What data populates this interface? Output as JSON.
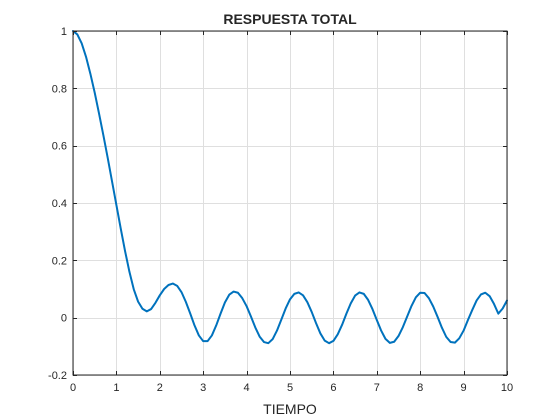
{
  "chart_data": {
    "type": "line",
    "title": "RESPUESTA TOTAL",
    "xlabel": "TIEMPO",
    "ylabel": "",
    "xlim": [
      0,
      10
    ],
    "ylim": [
      -0.2,
      1
    ],
    "xticks": [
      0,
      1,
      2,
      3,
      4,
      5,
      6,
      7,
      8,
      9,
      10
    ],
    "yticks": [
      -0.2,
      0,
      0.2,
      0.4,
      0.6,
      0.8,
      1
    ],
    "xtick_labels": [
      "0",
      "1",
      "2",
      "3",
      "4",
      "5",
      "6",
      "7",
      "8",
      "9",
      "10"
    ],
    "ytick_labels": [
      "-0.2",
      "0",
      "0.2",
      "0.4",
      "0.6",
      "0.8",
      "1"
    ],
    "grid": true,
    "legend": "none",
    "series": [
      {
        "color": "#0072bd",
        "x": [
          0,
          0.1,
          0.2,
          0.3,
          0.4,
          0.5,
          0.6,
          0.7,
          0.8,
          0.9,
          1.0,
          1.1,
          1.2,
          1.3,
          1.4,
          1.5,
          1.6,
          1.7,
          1.8,
          1.9,
          2.0,
          2.1,
          2.2,
          2.3,
          2.4,
          2.5,
          2.6,
          2.7,
          2.8,
          2.9,
          3.0,
          3.1,
          3.2,
          3.3,
          3.4,
          3.5,
          3.6,
          3.7,
          3.8,
          3.9,
          4.0,
          4.1,
          4.2,
          4.3,
          4.4,
          4.5,
          4.6,
          4.7,
          4.8,
          4.9,
          5.0,
          5.1,
          5.2,
          5.3,
          5.4,
          5.5,
          5.6,
          5.7,
          5.8,
          5.9,
          6.0,
          6.1,
          6.2,
          6.3,
          6.4,
          6.5,
          6.6,
          6.7,
          6.8,
          6.9,
          7.0,
          7.1,
          7.2,
          7.3,
          7.4,
          7.5,
          7.6,
          7.7,
          7.8,
          7.9,
          8.0,
          8.1,
          8.2,
          8.3,
          8.4,
          8.5,
          8.6,
          8.7,
          8.8,
          8.9,
          9.0,
          9.1,
          9.2,
          9.3,
          9.4,
          9.5,
          9.6,
          9.7,
          9.8,
          9.9,
          10.0
        ],
        "y": [
          1.0,
          0.988,
          0.957,
          0.91,
          0.851,
          0.785,
          0.712,
          0.636,
          0.557,
          0.475,
          0.393,
          0.311,
          0.232,
          0.16,
          0.099,
          0.056,
          0.031,
          0.022,
          0.03,
          0.052,
          0.078,
          0.1,
          0.114,
          0.119,
          0.111,
          0.089,
          0.055,
          0.015,
          -0.027,
          -0.062,
          -0.082,
          -0.082,
          -0.062,
          -0.027,
          0.014,
          0.053,
          0.08,
          0.091,
          0.087,
          0.068,
          0.04,
          0.004,
          -0.034,
          -0.066,
          -0.085,
          -0.089,
          -0.075,
          -0.045,
          -0.007,
          0.032,
          0.064,
          0.083,
          0.088,
          0.078,
          0.054,
          0.02,
          -0.019,
          -0.055,
          -0.08,
          -0.089,
          -0.081,
          -0.058,
          -0.025,
          0.014,
          0.05,
          0.077,
          0.088,
          0.083,
          0.062,
          0.03,
          -0.008,
          -0.045,
          -0.074,
          -0.088,
          -0.084,
          -0.064,
          -0.033,
          0.004,
          0.041,
          0.071,
          0.087,
          0.086,
          0.068,
          0.039,
          0.003,
          -0.035,
          -0.067,
          -0.085,
          -0.087,
          -0.072,
          -0.045,
          -0.008,
          0.027,
          0.06,
          0.081,
          0.087,
          0.075,
          0.048,
          0.014,
          0.032,
          0.06
        ]
      }
    ]
  }
}
